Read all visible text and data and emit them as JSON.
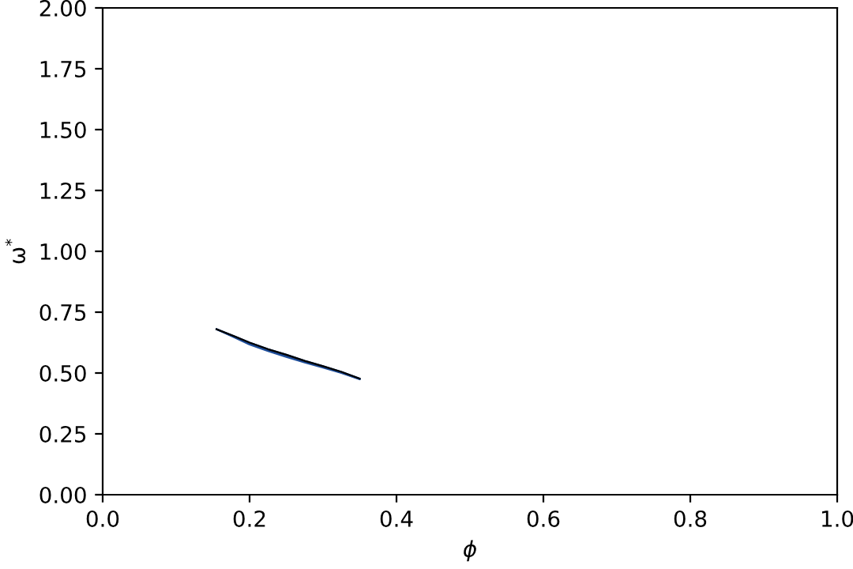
{
  "chart_data": {
    "type": "line",
    "xlabel": "ϕ",
    "ylabel": "ω$^{*}$",
    "x": [
      0.155,
      0.18,
      0.2,
      0.225,
      0.25,
      0.275,
      0.3,
      0.325,
      0.35
    ],
    "series": [
      {
        "color": "#1f4e9a",
        "values": [
          0.68,
          0.647,
          0.621,
          0.594,
          0.57,
          0.546,
          0.525,
          0.502,
          0.475
        ],
        "lower": [
          0.68,
          0.645,
          0.617,
          0.59,
          0.566,
          0.543,
          0.522,
          0.5,
          0.474
        ],
        "upper": [
          0.68,
          0.65,
          0.625,
          0.598,
          0.575,
          0.55,
          0.528,
          0.505,
          0.477
        ]
      },
      {
        "color": "#000000",
        "values": [
          0.68,
          0.65,
          0.625,
          0.598,
          0.575,
          0.55,
          0.528,
          0.505,
          0.477
        ]
      }
    ],
    "xlim": [
      0.0,
      1.0
    ],
    "xticks": [
      {
        "value": 0.0,
        "label": "0.0"
      },
      0.2,
      0.4,
      0.6,
      0.8,
      {
        "value": 1.0,
        "label": "1.0"
      }
    ],
    "ylim": [
      0.0,
      2.0
    ],
    "yticks": [
      {
        "value": 0,
        "label": "0.00"
      },
      {
        "value": 0.25,
        "label": "0.25"
      },
      {
        "value": 0.5,
        "label": "0.50"
      },
      {
        "value": 0.75,
        "label": "0.75"
      },
      {
        "value": 1.0,
        "label": "1.00"
      },
      {
        "value": 1.25,
        "label": "1.25"
      },
      {
        "value": 1.5,
        "label": "1.50"
      },
      {
        "value": 1.75,
        "label": "1.75"
      },
      {
        "value": 2.0,
        "label": "2.00"
      }
    ],
    "grid": false,
    "legend": false,
    "marker": "none",
    "line_style": "solid"
  }
}
